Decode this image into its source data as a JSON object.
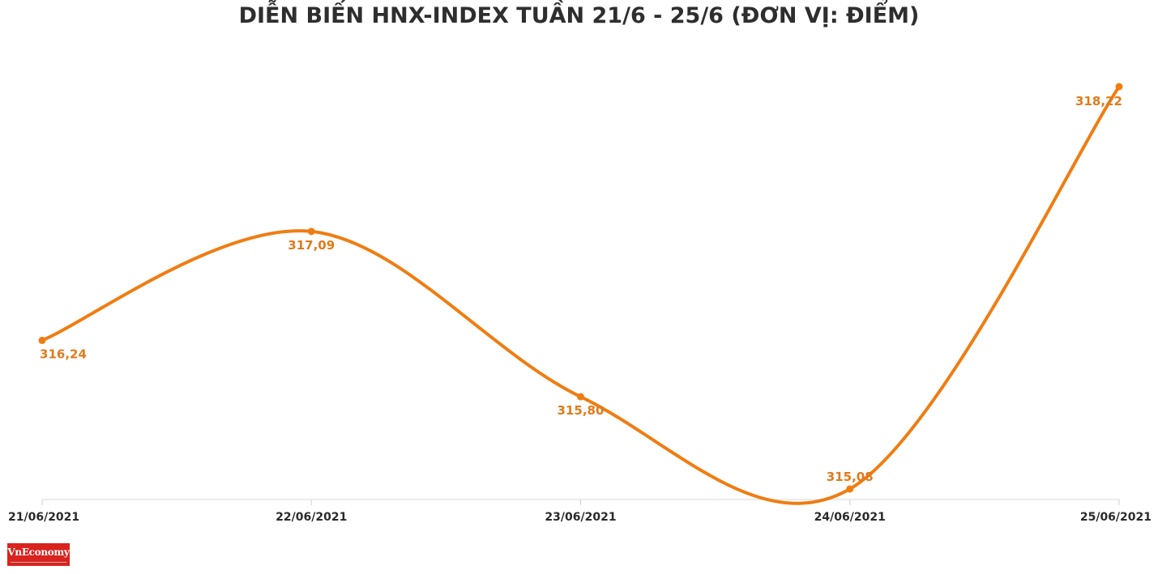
{
  "chart_data": {
    "type": "line",
    "title": "DIỄN BIẾN HNX-INDEX TUẦN 21/6 - 25/6 (ĐƠN VỊ: ĐIỂM)",
    "categories": [
      "21/06/2021",
      "22/06/2021",
      "23/06/2021",
      "24/06/2021",
      "25/06/2021"
    ],
    "values": [
      316.24,
      317.09,
      315.8,
      315.08,
      318.22
    ],
    "value_labels": [
      "316,24",
      "317,09",
      "315,80",
      "315,08",
      "318,22"
    ],
    "xlabel": "",
    "ylabel": "",
    "ylim": [
      315.0,
      318.3
    ],
    "grid": false,
    "line_color": "#ef7d12"
  },
  "logo": {
    "text": "VnEconomy"
  }
}
